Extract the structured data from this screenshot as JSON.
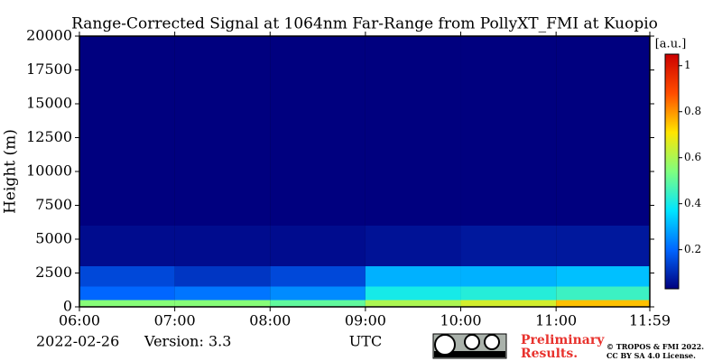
{
  "chart_data": {
    "type": "heatmap",
    "title": "Range-Corrected Signal at 1064nm Far-Range from PollyXT_FMI at Kuopio",
    "ylabel": "Height (m)",
    "xlabel": "UTC",
    "date": "2022-02-26",
    "version": "Version: 3.3",
    "notice": [
      "Preliminary",
      "Results."
    ],
    "license": [
      "© TROPOS & FMI 2022.",
      "CC BY SA 4.0 License."
    ],
    "colorbar_label": "[a.u.]",
    "xlim": [
      6,
      11.983
    ],
    "xticks": [
      {
        "value": 6,
        "label": "06:00"
      },
      {
        "value": 7,
        "label": "07:00"
      },
      {
        "value": 8,
        "label": "08:00"
      },
      {
        "value": 9,
        "label": "09:00"
      },
      {
        "value": 10,
        "label": "10:00"
      },
      {
        "value": 11,
        "label": "11:00"
      },
      {
        "value": 11.983,
        "label": "11:59"
      }
    ],
    "ylim": [
      0,
      20000
    ],
    "yticks": [
      0,
      2500,
      5000,
      7500,
      10000,
      12500,
      15000,
      17500,
      20000
    ],
    "x_edges": [
      6,
      7,
      8,
      9,
      10,
      11,
      11.983
    ],
    "y_edges": [
      0,
      500,
      1500,
      3000,
      6000,
      20000
    ],
    "z": [
      [
        0.55,
        0.55,
        0.5,
        0.6,
        0.65,
        0.75
      ],
      [
        0.2,
        0.22,
        0.25,
        0.4,
        0.42,
        0.45
      ],
      [
        0.15,
        0.12,
        0.15,
        0.3,
        0.3,
        0.32
      ],
      [
        0.05,
        0.05,
        0.05,
        0.06,
        0.07,
        0.07
      ],
      [
        0.02,
        0.02,
        0.02,
        0.02,
        0.02,
        0.02
      ]
    ],
    "clim": [
      0.03,
      1.05
    ],
    "cticks": [
      0.2,
      0.4,
      0.6,
      0.8,
      1.0
    ],
    "colormap": [
      "#00007f",
      "#0066ff",
      "#00e5ff",
      "#7fff7f",
      "#ffe500",
      "#ff4d00",
      "#cc0000"
    ],
    "background": "#000000"
  }
}
